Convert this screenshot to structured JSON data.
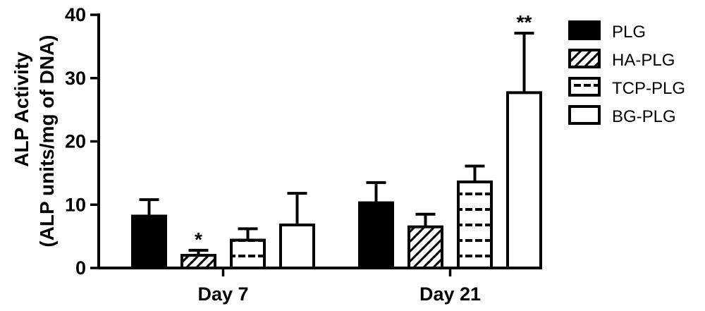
{
  "chart_data": {
    "type": "bar",
    "categories": [
      "Day 7",
      "Day 21"
    ],
    "ylabel_line1": "ALP Activity",
    "ylabel_line2": "(ALP units/mg of DNA)",
    "ylim": [
      0,
      40
    ],
    "yticks": [
      0,
      10,
      20,
      30,
      40
    ],
    "legend_position": "right",
    "series": [
      {
        "name": "PLG",
        "pattern": "solid",
        "values": [
          8.2,
          10.3
        ],
        "errors": [
          2.6,
          3.2
        ]
      },
      {
        "name": "HA-PLG",
        "pattern": "diagonal",
        "values": [
          2.0,
          6.5
        ],
        "errors": [
          0.8,
          2.0
        ]
      },
      {
        "name": "TCP-PLG",
        "pattern": "dashed",
        "values": [
          4.4,
          13.6
        ],
        "errors": [
          1.8,
          2.5
        ]
      },
      {
        "name": "BG-PLG",
        "pattern": "empty",
        "values": [
          6.8,
          27.7
        ],
        "errors": [
          5.0,
          9.4
        ]
      }
    ],
    "annotations": [
      {
        "text": "*",
        "category": "Day 7",
        "series": "HA-PLG"
      },
      {
        "text": "**",
        "category": "Day 21",
        "series": "BG-PLG"
      }
    ],
    "colors": {
      "fill": "#000000",
      "stroke": "#000000",
      "background": "#ffffff"
    }
  }
}
